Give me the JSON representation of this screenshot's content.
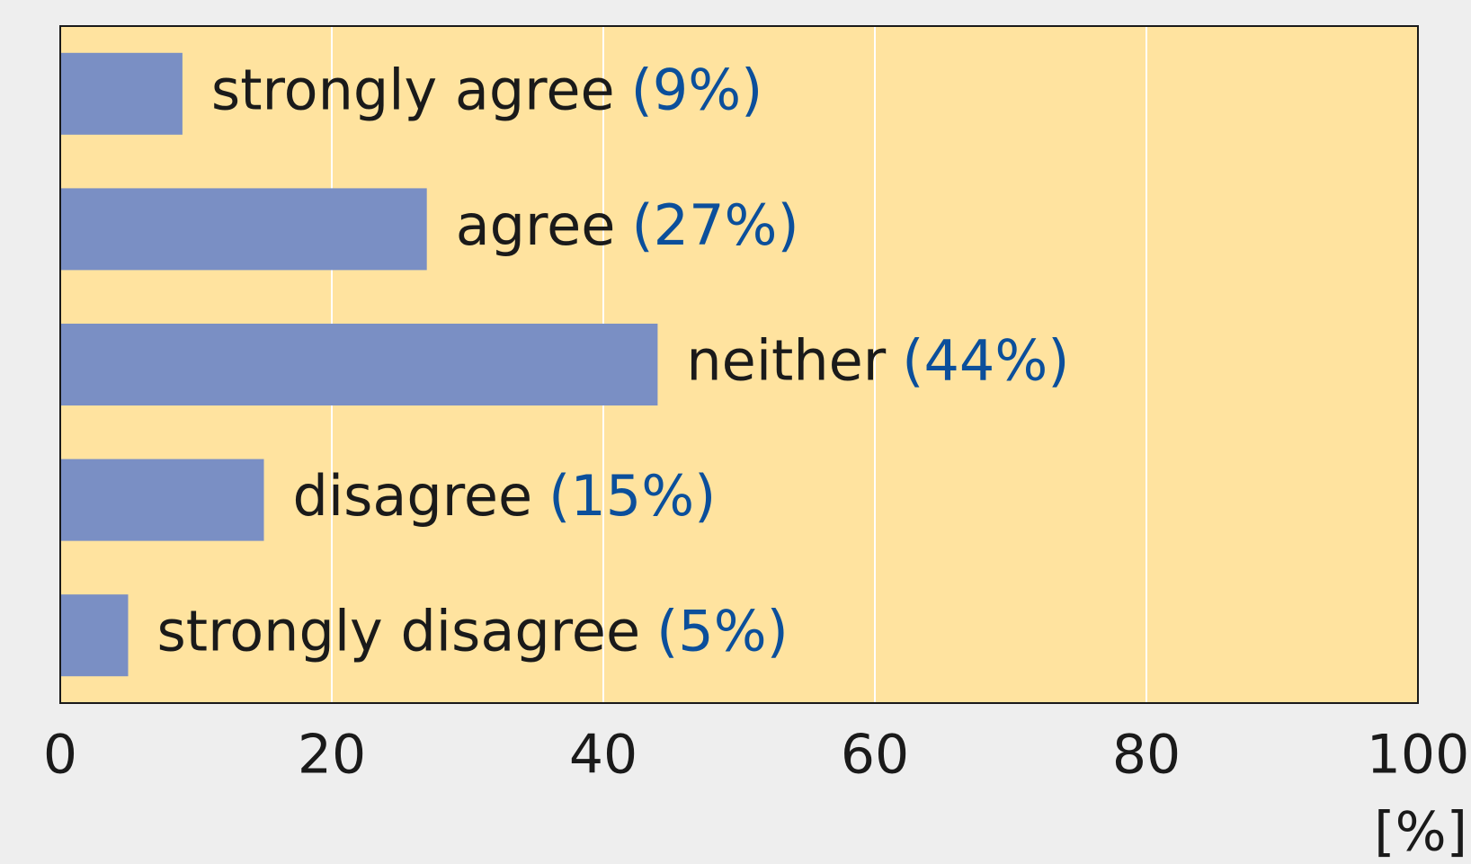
{
  "chart_data": {
    "type": "bar",
    "orientation": "horizontal",
    "categories": [
      "strongly agree",
      "agree",
      "neither",
      "disagree",
      "strongly disagree"
    ],
    "values": [
      9,
      27,
      44,
      15,
      5
    ],
    "value_labels": [
      "(9%)",
      "(27%)",
      "(44%)",
      "(15%)",
      "(5%)"
    ],
    "color": "#7a8fc4",
    "label_color": "#0b4f9b",
    "background": "#ffe39f",
    "xlim": [
      0,
      100
    ],
    "xticks": [
      0,
      20,
      40,
      60,
      80,
      100
    ],
    "grid": true,
    "x_label": "[%]"
  }
}
